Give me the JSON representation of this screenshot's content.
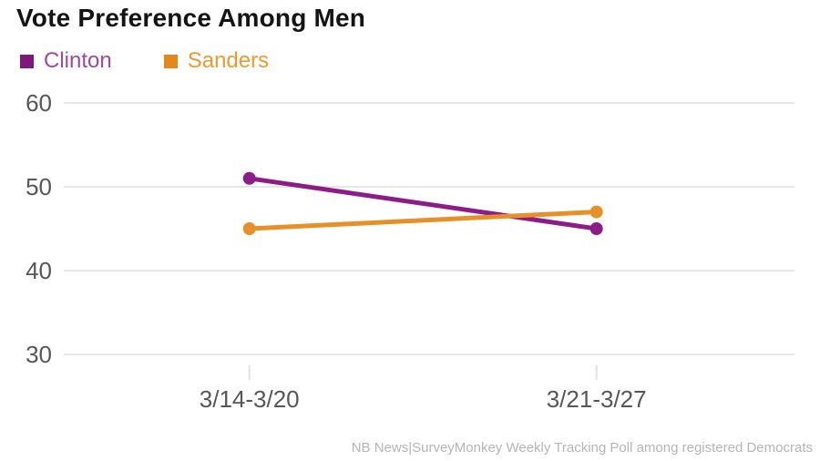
{
  "title": "Vote Preference Among Men",
  "legend": {
    "items": [
      {
        "label": "Clinton",
        "swatch_color": "#7d197b",
        "label_color": "#a04a9c"
      },
      {
        "label": "Sanders",
        "swatch_color": "#e5881c",
        "label_color": "#ee9a31"
      }
    ]
  },
  "chart_data": {
    "type": "line",
    "categories": [
      "3/14-3/20",
      "3/21-3/27"
    ],
    "series": [
      {
        "name": "Clinton",
        "values": [
          51,
          45
        ],
        "color": "#8c1d87"
      },
      {
        "name": "Sanders",
        "values": [
          45,
          47
        ],
        "color": "#e78f28"
      }
    ],
    "title": "Vote Preference Among Men",
    "xlabel": "",
    "ylabel": "",
    "ylim": [
      30,
      60
    ],
    "yticks": [
      60,
      50,
      40,
      30
    ],
    "grid": "horizontal",
    "legend_position": "top-left",
    "marker": "circle"
  },
  "footer": {
    "source": "NB News|SurveyMonkey Weekly Tracking Poll among registered Democrats"
  },
  "colors": {
    "background": "#ffffff",
    "title_text": "#141414",
    "grid_line": "#e7e7e7",
    "tick_mark": "#e2e2e2",
    "axis_text": "#575757",
    "footer_text": "#b5b5b5"
  }
}
